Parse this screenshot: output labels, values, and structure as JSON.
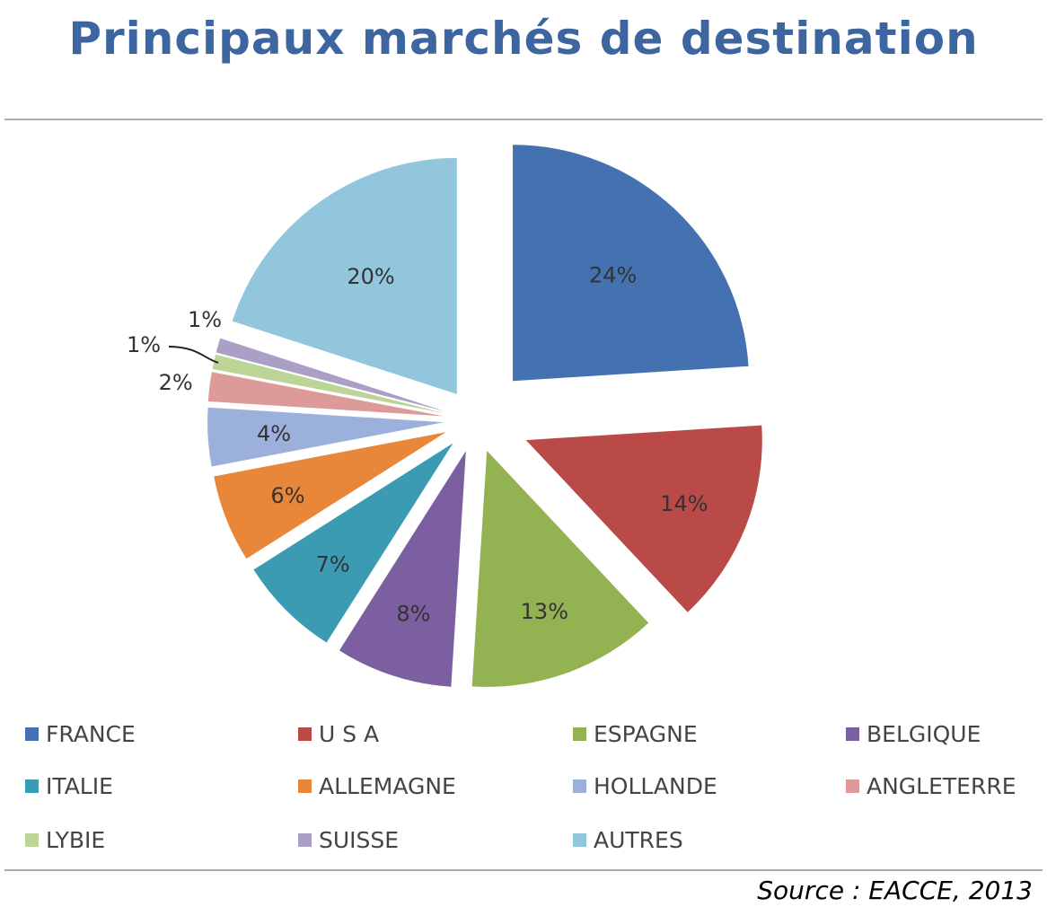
{
  "title": "Principaux marchés de destination",
  "source": "Source : EACCE, 2013",
  "chart_data": {
    "type": "pie",
    "title": "Principaux marchés de destination",
    "legend_position": "bottom",
    "slices": [
      {
        "label": "FRANCE",
        "value": 24,
        "value_label": "24%",
        "color": "#4472b0"
      },
      {
        "label": "U S A",
        "value": 14,
        "value_label": "14%",
        "color": "#b94a48"
      },
      {
        "label": "ESPAGNE",
        "value": 13,
        "value_label": "13%",
        "color": "#93b252"
      },
      {
        "label": "BELGIQUE",
        "value": 8,
        "value_label": "8%",
        "color": "#7b5fa0"
      },
      {
        "label": "ITALIE",
        "value": 7,
        "value_label": "7%",
        "color": "#3a9bb3"
      },
      {
        "label": "ALLEMAGNE",
        "value": 6,
        "value_label": "6%",
        "color": "#e8873a"
      },
      {
        "label": "HOLLANDE",
        "value": 4,
        "value_label": "4%",
        "color": "#9bb0da"
      },
      {
        "label": "ANGLETERRE",
        "value": 2,
        "value_label": "2%",
        "color": "#dc9a99"
      },
      {
        "label": "LYBIE",
        "value": 1,
        "value_label": "1%",
        "color": "#bcd597"
      },
      {
        "label": "SUISSE",
        "value": 1,
        "value_label": "1%",
        "color": "#ab9fc6"
      },
      {
        "label": "AUTRES",
        "value": 20,
        "value_label": "20%",
        "color": "#92c6dc"
      }
    ]
  }
}
